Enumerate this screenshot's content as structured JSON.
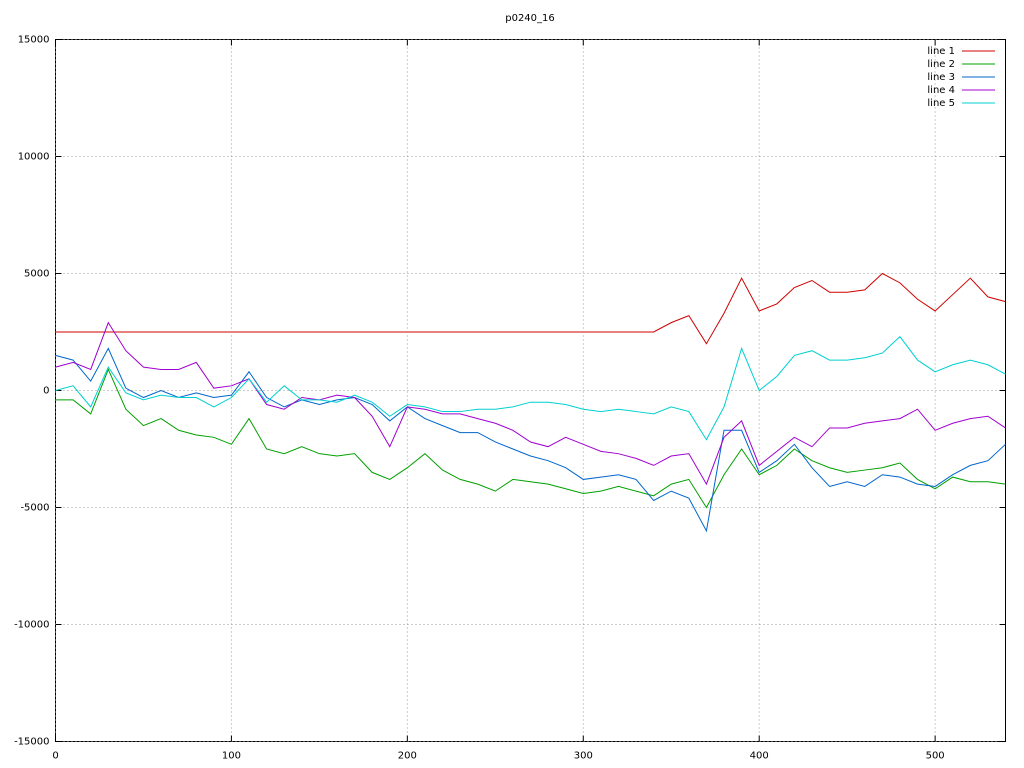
{
  "chart_data": {
    "type": "line",
    "title": "p0240_16",
    "x": [
      0,
      10,
      20,
      30,
      40,
      50,
      60,
      70,
      80,
      90,
      100,
      110,
      120,
      130,
      140,
      150,
      160,
      170,
      180,
      190,
      200,
      210,
      220,
      230,
      240,
      250,
      260,
      270,
      280,
      290,
      300,
      310,
      320,
      330,
      340,
      350,
      360,
      370,
      380,
      390,
      400,
      410,
      420,
      430,
      440,
      450,
      460,
      470,
      480,
      490,
      500,
      510,
      520,
      530,
      540
    ],
    "series": [
      {
        "name": "line 1",
        "color": "#d00000",
        "values": [
          2500,
          2500,
          2500,
          2500,
          2500,
          2500,
          2500,
          2500,
          2500,
          2500,
          2500,
          2500,
          2500,
          2500,
          2500,
          2500,
          2500,
          2500,
          2500,
          2500,
          2500,
          2500,
          2500,
          2500,
          2500,
          2500,
          2500,
          2500,
          2500,
          2500,
          2500,
          2500,
          2500,
          2500,
          2500,
          2900,
          3200,
          2000,
          3300,
          4800,
          3400,
          3700,
          4400,
          4700,
          4200,
          4200,
          4300,
          5000,
          4600,
          3900,
          3400,
          4100,
          4800,
          4000,
          3800
        ]
      },
      {
        "name": "line 2",
        "color": "#00a000",
        "values": [
          -400,
          -400,
          -1000,
          900,
          -800,
          -1500,
          -1200,
          -1700,
          -1900,
          -2000,
          -2300,
          -1200,
          -2500,
          -2700,
          -2400,
          -2700,
          -2800,
          -2700,
          -3500,
          -3800,
          -3300,
          -2700,
          -3400,
          -3800,
          -4000,
          -4300,
          -3800,
          -3900,
          -4000,
          -4200,
          -4400,
          -4300,
          -4100,
          -4300,
          -4500,
          -4000,
          -3800,
          -5000,
          -3600,
          -2500,
          -3600,
          -3200,
          -2500,
          -3000,
          -3300,
          -3500,
          -3400,
          -3300,
          -3100,
          -3800,
          -4200,
          -3700,
          -3900,
          -3900,
          -4000
        ]
      },
      {
        "name": "line 3",
        "color": "#0066cc",
        "values": [
          1500,
          1300,
          400,
          1800,
          100,
          -300,
          0,
          -300,
          -100,
          -300,
          -200,
          800,
          -300,
          -700,
          -400,
          -600,
          -400,
          -300,
          -600,
          -1300,
          -700,
          -1200,
          -1500,
          -1800,
          -1800,
          -2200,
          -2500,
          -2800,
          -3000,
          -3300,
          -3800,
          -3700,
          -3600,
          -3800,
          -4700,
          -4300,
          -4600,
          -6000,
          -1700,
          -1700,
          -3500,
          -3000,
          -2300,
          -3300,
          -4100,
          -3900,
          -4100,
          -3600,
          -3700,
          -4000,
          -4100,
          -3600,
          -3200,
          -3000,
          -2300
        ]
      },
      {
        "name": "line 4",
        "color": "#a000d0",
        "values": [
          1000,
          1200,
          900,
          2900,
          1700,
          1000,
          900,
          900,
          1200,
          100,
          200,
          500,
          -600,
          -800,
          -300,
          -400,
          -200,
          -300,
          -1100,
          -2400,
          -700,
          -800,
          -1000,
          -1000,
          -1200,
          -1400,
          -1700,
          -2200,
          -2400,
          -2000,
          -2300,
          -2600,
          -2700,
          -2900,
          -3200,
          -2800,
          -2700,
          -4000,
          -2000,
          -1300,
          -3200,
          -2600,
          -2000,
          -2400,
          -1600,
          -1600,
          -1400,
          -1300,
          -1200,
          -800,
          -1700,
          -1400,
          -1200,
          -1100,
          -1600
        ]
      },
      {
        "name": "line 5",
        "color": "#00d0d0",
        "values": [
          0,
          200,
          -700,
          1000,
          -100,
          -400,
          -200,
          -300,
          -300,
          -700,
          -300,
          500,
          -500,
          200,
          -400,
          -400,
          -500,
          -200,
          -500,
          -1100,
          -600,
          -700,
          -900,
          -900,
          -800,
          -800,
          -700,
          -500,
          -500,
          -600,
          -800,
          -900,
          -800,
          -900,
          -1000,
          -700,
          -900,
          -2100,
          -700,
          1800,
          0,
          600,
          1500,
          1700,
          1300,
          1300,
          1400,
          1600,
          2300,
          1300,
          800,
          1100,
          1300,
          1100,
          700
        ]
      }
    ],
    "xlim": [
      0,
      540
    ],
    "xticks": [
      0,
      100,
      200,
      300,
      400,
      500
    ],
    "ylim": [
      -15000,
      15000
    ],
    "yticks": [
      -15000,
      -10000,
      -5000,
      0,
      5000,
      10000,
      15000
    ],
    "grid": true,
    "legend": "top-right"
  }
}
